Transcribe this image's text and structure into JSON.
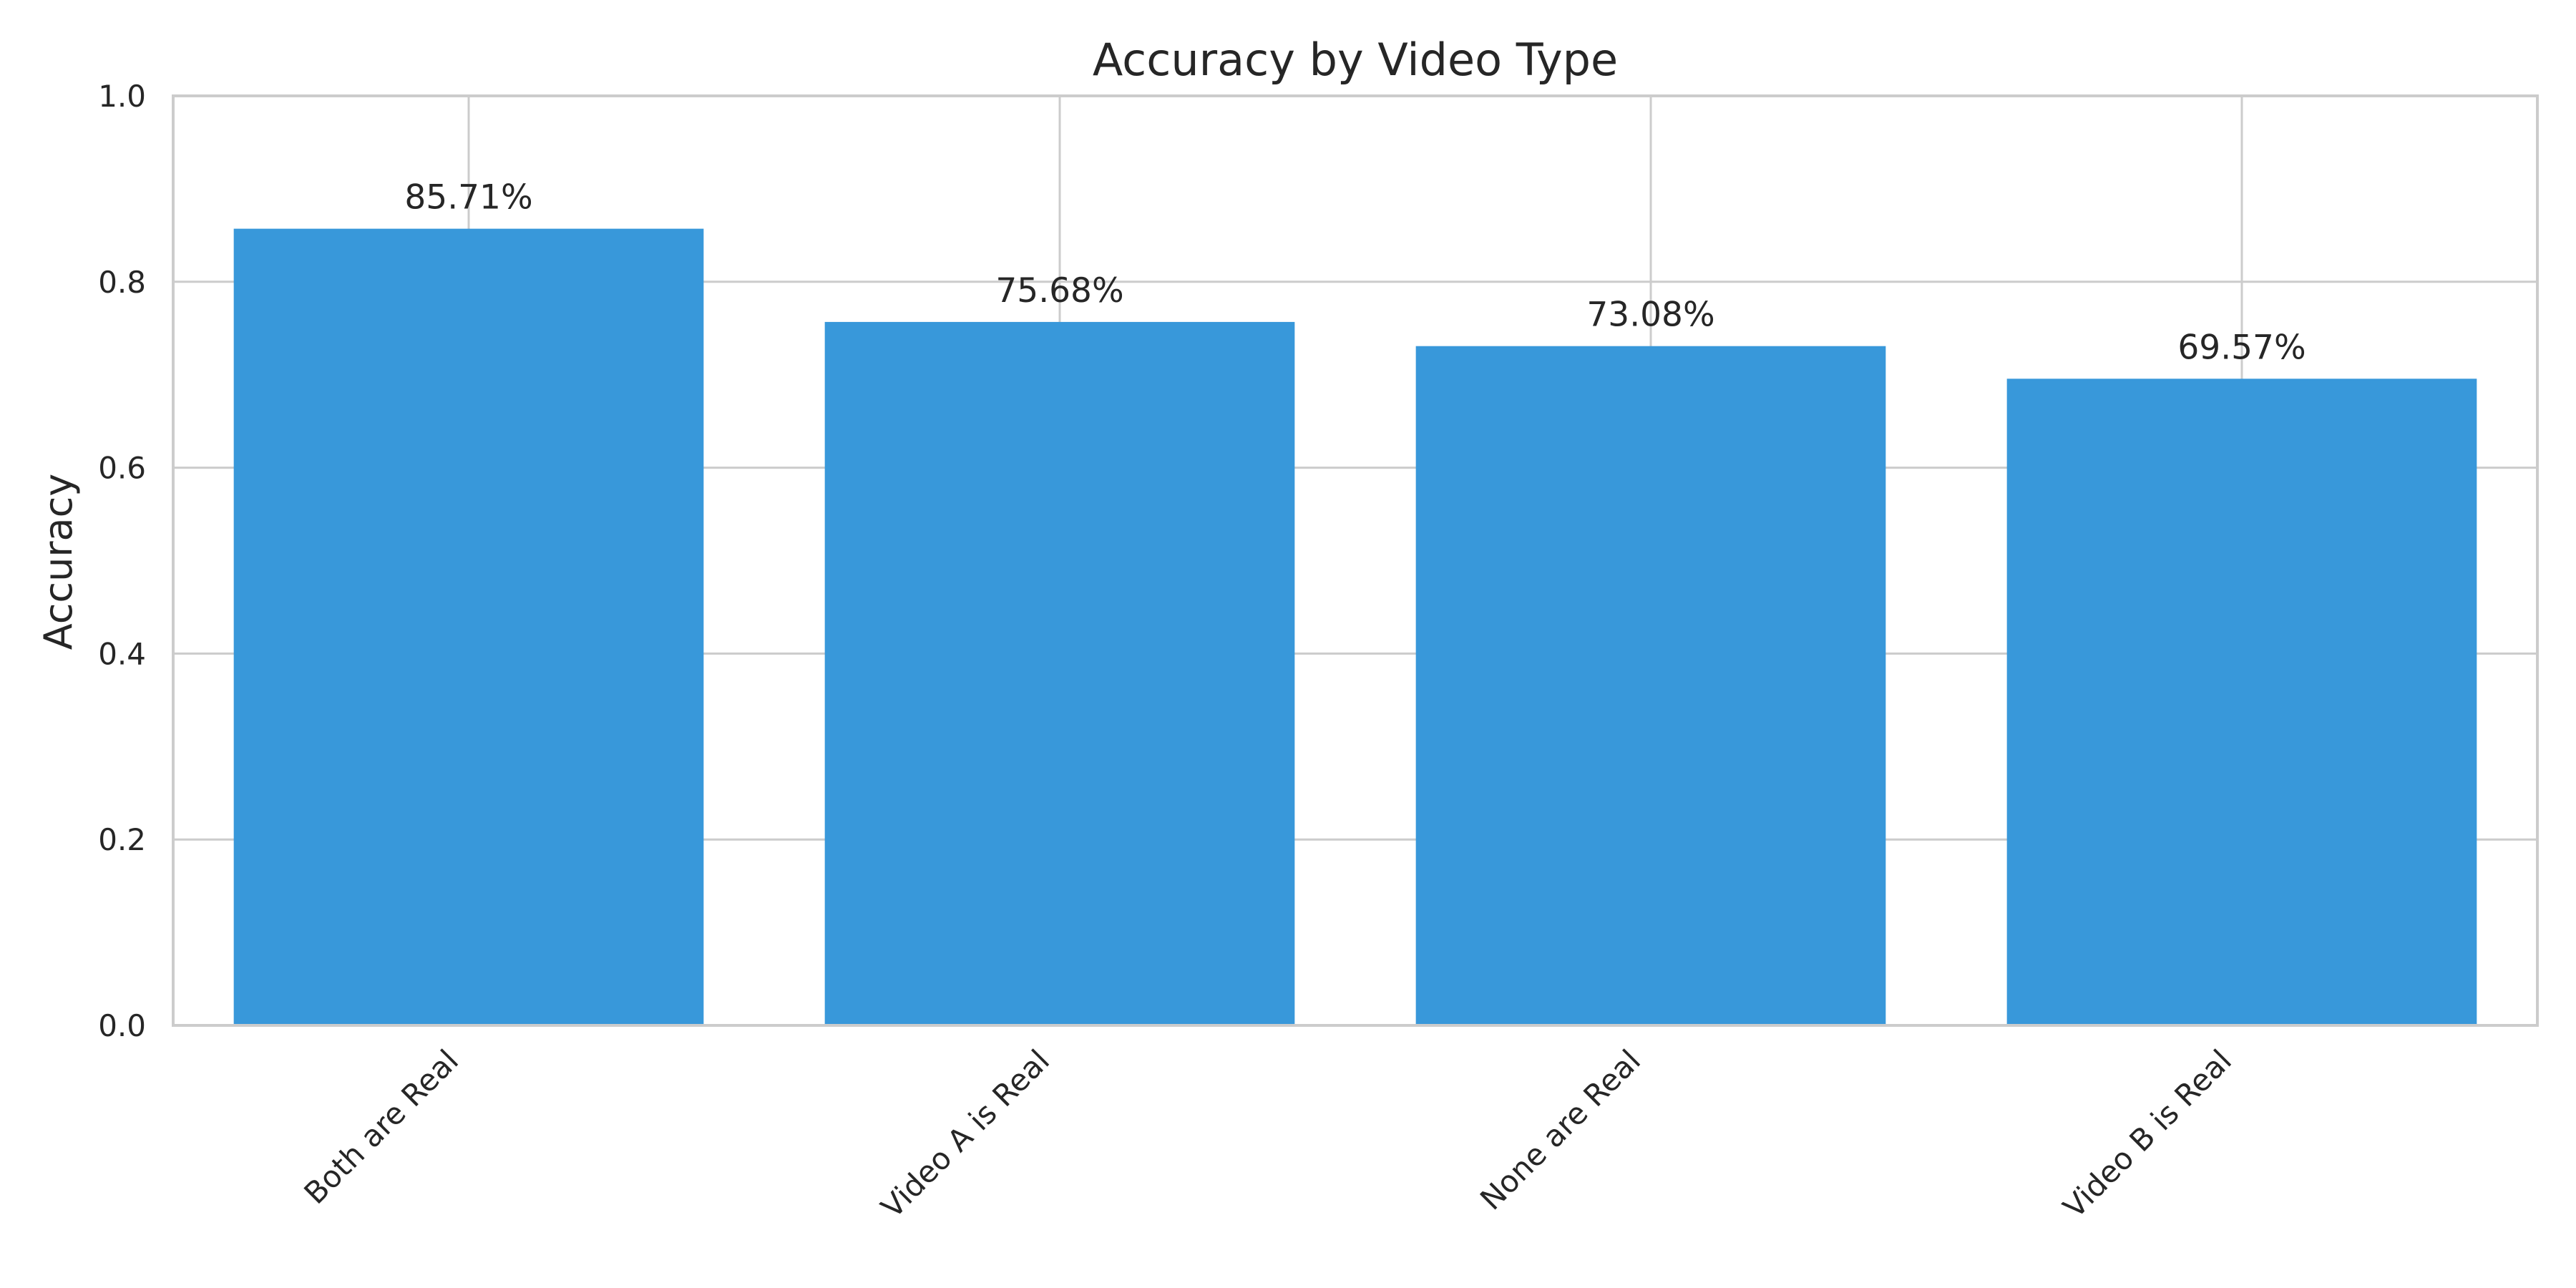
{
  "chart_data": {
    "type": "bar",
    "title": "Accuracy by Video Type",
    "xlabel": "",
    "ylabel": "Accuracy",
    "categories": [
      "Both are Real",
      "Video A is Real",
      "None are Real",
      "Video B is Real"
    ],
    "values": [
      0.8571,
      0.7568,
      0.7308,
      0.6957
    ],
    "value_labels": [
      "85.71%",
      "75.68%",
      "73.08%",
      "69.57%"
    ],
    "ylim": [
      0,
      1.0
    ],
    "yticks": [
      0.0,
      0.2,
      0.4,
      0.6,
      0.8,
      1.0
    ],
    "ytick_labels": [
      "0.0",
      "0.2",
      "0.4",
      "0.6",
      "0.8",
      "1.0"
    ],
    "grid": true,
    "bar_color": "#3898da"
  }
}
